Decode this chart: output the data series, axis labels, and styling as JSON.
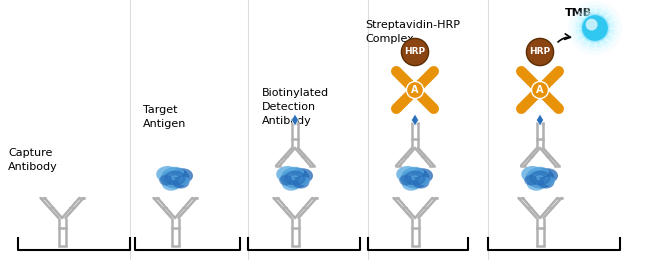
{
  "background_color": "#ffffff",
  "panel_labels": [
    "Capture\nAntibody",
    "Target\nAntigen",
    "Biotinylated\nDetection\nAntibody",
    "Streptavidin-HRP\nComplex",
    "TMB"
  ],
  "label_fontsize": 8.0,
  "antibody_color": "#b0b0b0",
  "antibody_edge_color": "#888888",
  "antigen_color_primary": "#2a6fba",
  "antigen_color_secondary": "#5aaae0",
  "biotin_color": "#2a6fba",
  "streptavidin_color": "#e8920a",
  "hrp_color": "#8B4513",
  "hrp_text_color": "#ffffff",
  "tmb_core_color": "#30c8f0",
  "tmb_glow_color": "#80e8ff",
  "figure_width": 6.5,
  "figure_height": 2.6,
  "dpi": 100
}
